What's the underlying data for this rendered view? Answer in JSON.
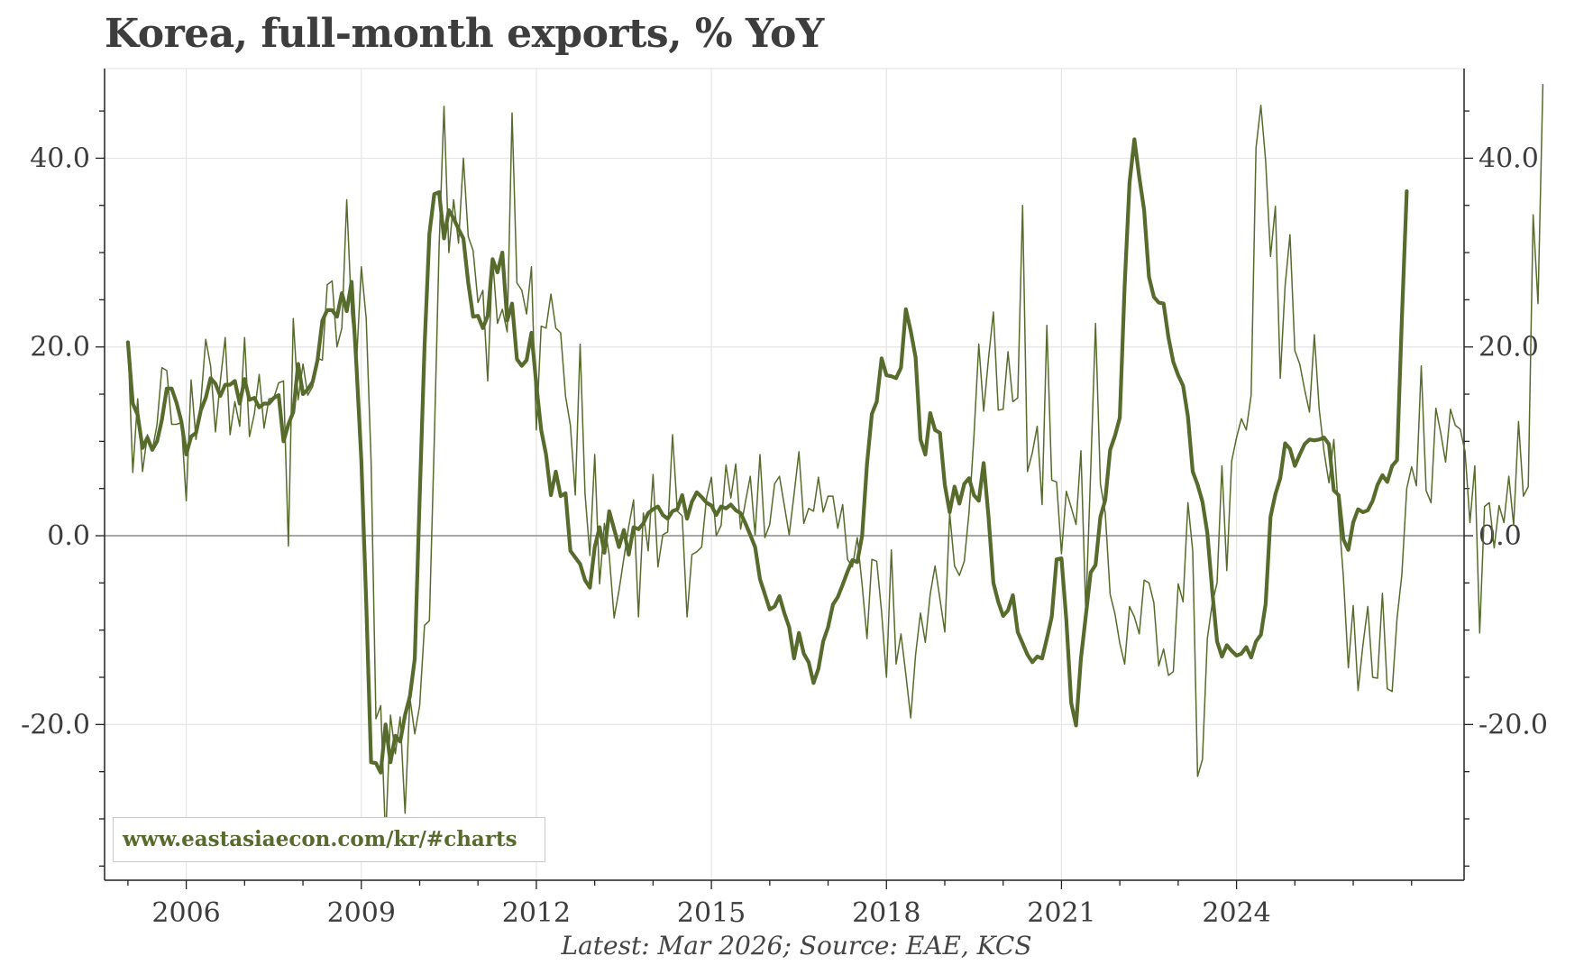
{
  "title": "Korea, full-month exports, % YoY",
  "footnote": "Latest: Mar 2026; Source: EAE, KCS",
  "watermark": "www.eastasiaecon.com/kr/#charts",
  "colors": {
    "series": "#566b2c",
    "grid": "#e5e5e5",
    "zero_line": "#8c8c8c",
    "axis": "#222222",
    "text": "#3d3d3d"
  },
  "chart_data": {
    "type": "line",
    "title": "Korea, full-month exports, % YoY",
    "xlabel": "",
    "ylabel": "",
    "xlim": [
      2004.6,
      2027.9
    ],
    "ylim": [
      -36.5,
      49.5
    ],
    "x_ticks": [
      2006,
      2009,
      2012,
      2015,
      2018,
      2021,
      2024
    ],
    "x_tick_labels": [
      "2006",
      "2009",
      "2012",
      "2015",
      "2018",
      "2021",
      "2024"
    ],
    "y_ticks": [
      -20,
      0,
      20,
      40
    ],
    "y_tick_labels": [
      "-20.0",
      "0.0",
      "20.0",
      "40.0"
    ],
    "left_axis": true,
    "right_axis": true,
    "grid": true,
    "x_start": 2005.0,
    "x_step": 0.08333333,
    "series": [
      {
        "style": "thin",
        "values": [
          20.5,
          6.7,
          14.5,
          6.8,
          10.7,
          9,
          11.8,
          17.8,
          17.5,
          11.8,
          11.8,
          12,
          3.7,
          16.5,
          10.2,
          14.2,
          20.8,
          18,
          11,
          16.4,
          21,
          10.7,
          14.2,
          11.6,
          21,
          10.5,
          12.9,
          17.1,
          11.4,
          14.5,
          14.6,
          16.2,
          16.4,
          -1.1,
          23,
          14.4,
          18.2,
          14.9,
          15.8,
          18.8,
          18.6,
          26.6,
          27,
          20,
          22,
          35.6,
          23.5,
          18.2,
          28.5,
          23,
          8,
          -19.4,
          -18,
          -32.2,
          -19,
          -23.1,
          -19.2,
          -29.4,
          -17.2,
          -21,
          -18,
          -9.5,
          -9,
          10,
          30.7,
          45.5,
          30,
          35.6,
          31,
          40,
          31.7,
          30.2,
          24.7,
          26,
          16.4,
          29.4,
          22.5,
          24,
          21.6,
          44.8,
          26.8,
          26,
          23.5,
          28.5,
          11.2,
          22.2,
          22,
          25.6,
          22,
          21.5,
          14.8,
          11.7,
          4.3,
          20.3,
          4.5,
          -2.1,
          8.6,
          -5.1,
          1.3,
          -2.1,
          -8.7,
          -5.8,
          -2.4,
          1,
          3.8,
          -8.6,
          2.4,
          -1.6,
          6.5,
          -3.3,
          0.1,
          0.4,
          10.7,
          2.6,
          2.1,
          -8.6,
          -2,
          -1.7,
          -1.2,
          4,
          6.2,
          0,
          1.1,
          7.5,
          4,
          7.6,
          0.7,
          3.6,
          6.3,
          0.1,
          8.6,
          -0.2,
          1.2,
          5.5,
          6.3,
          3.2,
          0.1,
          4.4,
          8.9,
          1.3,
          2.9,
          2.6,
          6.2,
          2.5,
          4.2,
          4.2,
          0.8,
          3.3,
          -2.5,
          -3.3,
          -0.2,
          -5.2,
          -10.9,
          -2.5,
          -2.7,
          -8.1,
          -15,
          -1.5,
          -13.6,
          -10.4,
          -14.7,
          -19.3,
          -12.6,
          -8.2,
          -11.3,
          -6.2,
          -3.2,
          -6.7,
          -10.2,
          2.4,
          -3.2,
          -4.2,
          -2.7,
          2.5,
          10.5,
          20.3,
          13.2,
          18.8,
          23.7,
          13.3,
          13.4,
          19.5,
          14.2,
          14.6,
          35,
          6.8,
          8.8,
          11.6,
          3.3,
          22.3,
          5.9,
          5.7,
          -1.9,
          4.7,
          3,
          1.2,
          9,
          -8.1,
          6.8,
          22.5,
          5.5,
          2.4,
          -6.2,
          -8.3,
          -11.4,
          -13.6,
          -7.5,
          -8.6,
          -10.4,
          -4.7,
          -5,
          -7.1,
          -13.8,
          -12,
          -14.8,
          -14.4,
          -5.1,
          -7,
          3.5,
          -1.6,
          -25.5,
          -23.7,
          -10.9,
          -7.2,
          -5,
          7.4,
          -3.7,
          7.9,
          10.4,
          12.4,
          11.2,
          14.9,
          41.1,
          45.6,
          39.7,
          29.6,
          34.9,
          16.7,
          26.5,
          31.9,
          19.6,
          18.2,
          15.5,
          13.1,
          21.3,
          13.4,
          8.9,
          5.6,
          10.2,
          2.5,
          -4.5,
          -14,
          -7.4,
          -16.4,
          -11.6,
          -7.5,
          -15,
          -15.1,
          -6.1,
          -16.2,
          -16.5,
          -8.8,
          -4.1,
          5,
          7.3,
          5.3,
          18,
          4.8,
          3.5,
          13.5,
          10.9,
          7.8,
          13.4,
          11.7,
          11.3,
          8.9,
          1.4,
          7.4,
          -10.3,
          3.1,
          3.5,
          -1.3,
          3.2,
          1.4,
          6.3,
          1.1,
          12.1,
          4.2,
          5.2,
          34,
          24.6,
          47.8
        ]
      },
      {
        "style": "thick",
        "values": [
          20.5,
          14,
          12.8,
          9.3,
          10.4,
          9.1,
          10,
          12.3,
          15.6,
          15.6,
          14.1,
          12.1,
          8.6,
          10.5,
          10.9,
          13.3,
          14.6,
          16.7,
          16.1,
          14.8,
          16,
          16,
          16.4,
          14,
          16.6,
          14.4,
          14.6,
          13.6,
          14,
          14,
          14.6,
          14.9,
          10,
          11.8,
          13.1,
          18.2,
          15,
          15.5,
          16.3,
          18.6,
          22.8,
          23.9,
          23.9,
          23.2,
          25.7,
          23.8,
          26.9,
          18,
          8,
          -7,
          -24,
          -24.1,
          -25.1,
          -20,
          -24,
          -21.2,
          -21.8,
          -19,
          -17,
          -13,
          4,
          20,
          32,
          36.2,
          36.4,
          31.5,
          34.5,
          33.6,
          32.5,
          31.5,
          26.8,
          23.2,
          23.3,
          22,
          23.3,
          29.3,
          27.9,
          30,
          22.8,
          24.6,
          18.7,
          18,
          18.6,
          21.5,
          16,
          11.2,
          8.6,
          4.3,
          6.8,
          4.2,
          4.5,
          -1.6,
          -2.3,
          -3,
          -4.7,
          -5.5,
          -1.2,
          0.9,
          -1.8,
          2.6,
          0.7,
          -1.2,
          0.6,
          -2,
          0.9,
          0.7,
          1.3,
          2.4,
          2.8,
          3.1,
          2.2,
          1.8,
          2.6,
          2.8,
          4.3,
          1.8,
          3.6,
          4.6,
          4.1,
          3.5,
          3.2,
          2.2,
          3.1,
          2.9,
          3.3,
          2.7,
          2.4,
          1.3,
          0.1,
          -1.2,
          -4.6,
          -6.2,
          -7.8,
          -7.5,
          -6.4,
          -8.2,
          -9.7,
          -13,
          -10.3,
          -12.5,
          -13.4,
          -15.6,
          -14.1,
          -11.2,
          -9.7,
          -7.3,
          -6.5,
          -5.2,
          -3.8,
          -2.6,
          -2.8,
          0,
          7.6,
          12.9,
          14.2,
          18.8,
          17,
          16.9,
          16.7,
          17.8,
          24,
          21.7,
          18.9,
          10.2,
          8.6,
          13,
          11.2,
          10.9,
          5.4,
          2.5,
          5.2,
          3.4,
          5.5,
          6.1,
          4.3,
          3.7,
          7.7,
          2,
          -5,
          -7,
          -8.5,
          -7.9,
          -6.3,
          -10.2,
          -11.4,
          -12.6,
          -13.4,
          -12.8,
          -13,
          -10.9,
          -8.6,
          -2.5,
          -2.4,
          -8.9,
          -17.7,
          -20.1,
          -13,
          -8.5,
          -3.9,
          -3.1,
          2,
          3.8,
          9.1,
          10.6,
          12.5,
          26.5,
          37.4,
          42,
          38,
          34.5,
          27.4,
          25.3,
          24.7,
          24.6,
          21,
          18.4,
          17,
          15.9,
          12.6,
          6.8,
          5.4,
          3.6,
          0.3,
          -5.8,
          -11.2,
          -12.8,
          -11.6,
          -12.2,
          -12.7,
          -12.5,
          -11.8,
          -12.9,
          -11.2,
          -10.5,
          -7.2,
          2,
          4.4,
          6.1,
          9.8,
          9.2,
          7.4,
          8.6,
          9.7,
          10.2,
          10.1,
          10.2,
          10.4,
          9.7,
          4.8,
          4.3,
          -0.4,
          -1.5,
          1.4,
          2.8,
          2.5,
          2.7,
          3.7,
          5.4,
          6.4,
          5.7,
          7.4,
          8,
          23,
          36.5
        ]
      }
    ]
  }
}
